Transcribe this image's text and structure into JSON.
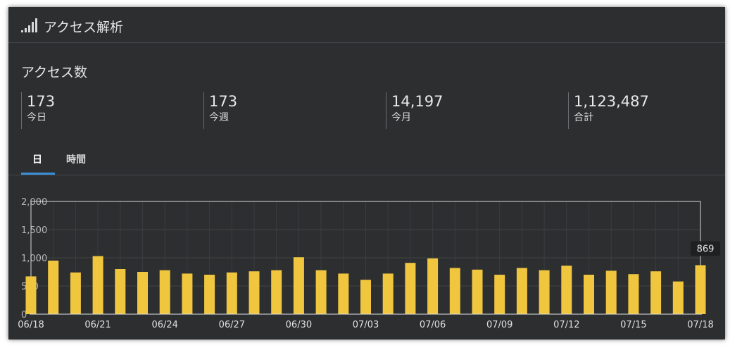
{
  "header": {
    "title": "アクセス解析",
    "icon": "signal-bars-icon"
  },
  "section": {
    "title": "アクセス数"
  },
  "stats": [
    {
      "value": "173",
      "label": "今日"
    },
    {
      "value": "173",
      "label": "今週"
    },
    {
      "value": "14,197",
      "label": "今月"
    },
    {
      "value": "1,123,487",
      "label": "合計"
    }
  ],
  "tabs": [
    {
      "label": "日",
      "active": true
    },
    {
      "label": "時間",
      "active": false
    }
  ],
  "colors": {
    "bar": "#f0c63e",
    "accent": "#3b8fd6",
    "panel": "#2d2e30"
  },
  "tooltip": {
    "value": "869"
  },
  "chart_data": {
    "type": "bar",
    "x_tick_labels": [
      "06/18",
      "06/21",
      "06/24",
      "06/27",
      "06/30",
      "07/03",
      "07/06",
      "07/09",
      "07/12",
      "07/15",
      "07/18"
    ],
    "y_tick_labels": [
      "0",
      "500",
      "1,000",
      "1,500",
      "2,000"
    ],
    "ylim": [
      0,
      2000
    ],
    "grid": true,
    "categories": [
      "06/18",
      "06/19",
      "06/20",
      "06/21",
      "06/22",
      "06/23",
      "06/24",
      "06/25",
      "06/26",
      "06/27",
      "06/28",
      "06/29",
      "06/30",
      "07/01",
      "07/02",
      "07/03",
      "07/04",
      "07/05",
      "07/06",
      "07/07",
      "07/08",
      "07/09",
      "07/10",
      "07/11",
      "07/12",
      "07/13",
      "07/14",
      "07/15",
      "07/16",
      "07/17",
      "07/18"
    ],
    "values": [
      670,
      950,
      740,
      1030,
      800,
      750,
      780,
      720,
      700,
      740,
      760,
      780,
      1010,
      780,
      720,
      610,
      720,
      910,
      990,
      820,
      790,
      700,
      820,
      780,
      860,
      700,
      770,
      710,
      760,
      580,
      869
    ]
  }
}
